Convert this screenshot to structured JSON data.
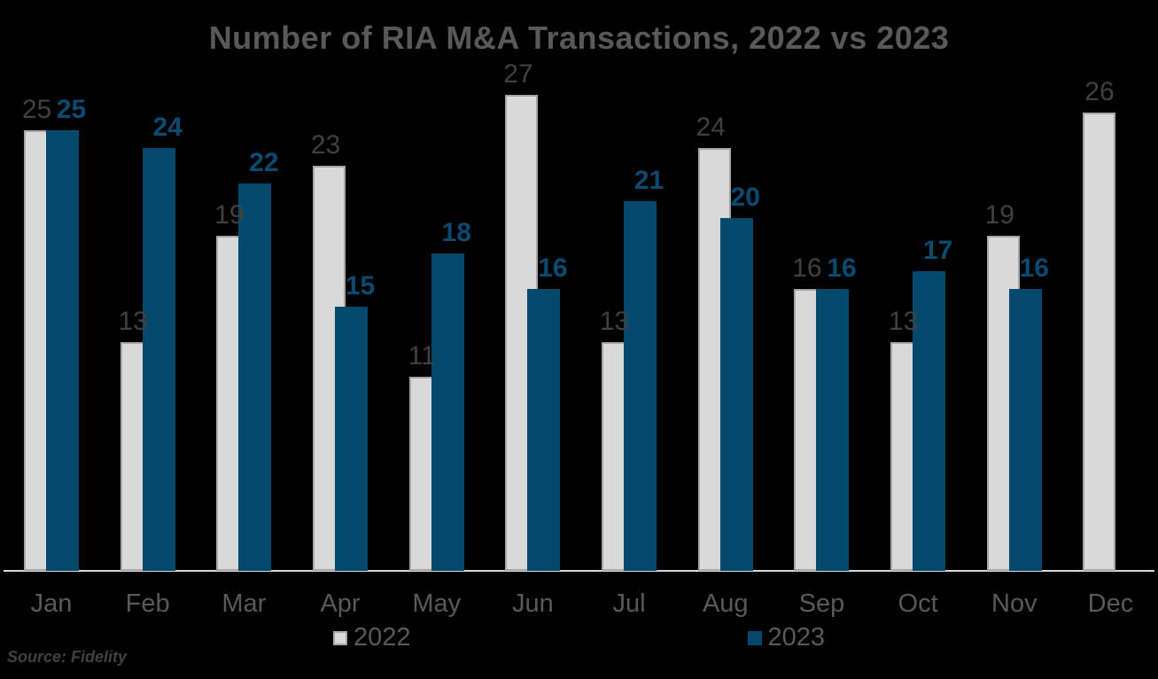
{
  "title": "Number of RIA M&A Transactions, 2022 vs 2023",
  "source": "Source: Fidelity",
  "colors": {
    "background": "#000000",
    "bar_2022": "#d9d9d9",
    "bar_2022_border": "#a6a6a6",
    "bar_2023": "#03496e",
    "value_label_2022": "#404040",
    "value_label_2023": "#0a4a70",
    "text_muted": "#595959",
    "axis_line": "#d9d9d9"
  },
  "legend": {
    "position": "bottom",
    "items": [
      {
        "label": "2022"
      },
      {
        "label": "2023"
      }
    ]
  },
  "chart_data": {
    "type": "bar",
    "title": "Number of RIA M&A Transactions, 2022 vs 2023",
    "categories": [
      "Jan",
      "Feb",
      "Mar",
      "Apr",
      "May",
      "Jun",
      "Jul",
      "Aug",
      "Sep",
      "Oct",
      "Nov",
      "Dec"
    ],
    "series": [
      {
        "name": "2022",
        "color": "#d9d9d9",
        "values": [
          25,
          13,
          19,
          23,
          11,
          27,
          13,
          24,
          16,
          13,
          19,
          26
        ]
      },
      {
        "name": "2023",
        "color": "#03496e",
        "values": [
          25,
          24,
          22,
          15,
          18,
          16,
          21,
          20,
          16,
          17,
          16,
          null
        ]
      }
    ],
    "xlabel": "",
    "ylabel": "",
    "ylim": [
      0,
      27
    ],
    "grid": false,
    "value_labels": "outside-end",
    "legend_position": "bottom"
  }
}
